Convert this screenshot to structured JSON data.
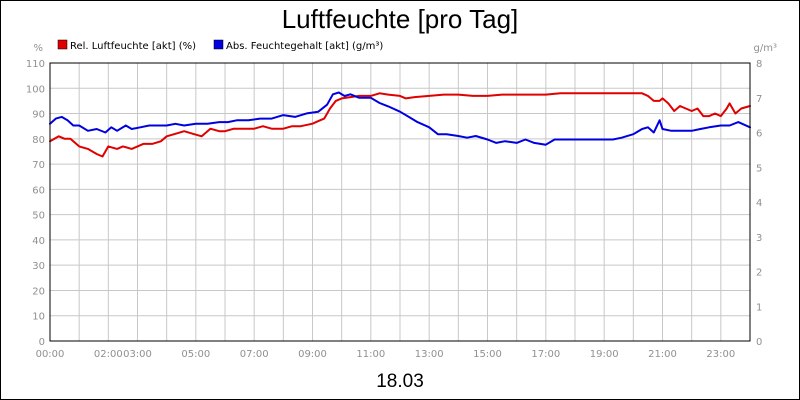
{
  "chart_data": {
    "type": "line",
    "title": "Luftfeuchte [pro Tag]",
    "date_label": "18.03",
    "y_left_unit": "%",
    "y_right_unit": "g/m³",
    "ylim_left": [
      0,
      110
    ],
    "ylim_right": [
      0,
      8
    ],
    "xlim": [
      0,
      24
    ],
    "grid": true,
    "legend_position": "top-left",
    "y_left_ticks": [
      "0",
      "10",
      "20",
      "30",
      "40",
      "50",
      "60",
      "70",
      "80",
      "90",
      "100",
      "110"
    ],
    "y_right_ticks": [
      "0",
      "1",
      "2",
      "3",
      "4",
      "5",
      "6",
      "7",
      "8"
    ],
    "x_ticks": [
      {
        "x": 0,
        "label": "00:00"
      },
      {
        "x": 2,
        "label": "02:00"
      },
      {
        "x": 3,
        "label": "03:00"
      },
      {
        "x": 5,
        "label": "05:00"
      },
      {
        "x": 7,
        "label": "07:00"
      },
      {
        "x": 9,
        "label": "09:00"
      },
      {
        "x": 11,
        "label": "11:00"
      },
      {
        "x": 13,
        "label": "13:00"
      },
      {
        "x": 15,
        "label": "15:00"
      },
      {
        "x": 17,
        "label": "17:00"
      },
      {
        "x": 19,
        "label": "19:00"
      },
      {
        "x": 21,
        "label": "21:00"
      },
      {
        "x": 23,
        "label": "23:00"
      }
    ],
    "series": [
      {
        "name": "Rel. Luftfeuchte [akt] (%)",
        "color": "#e00000",
        "axis": "left",
        "x": [
          0,
          0.3,
          0.5,
          0.7,
          1.0,
          1.3,
          1.6,
          1.8,
          2.0,
          2.3,
          2.5,
          2.8,
          3.0,
          3.2,
          3.5,
          3.8,
          4.0,
          4.3,
          4.6,
          4.9,
          5.2,
          5.5,
          5.8,
          6.0,
          6.3,
          6.6,
          7.0,
          7.3,
          7.6,
          8.0,
          8.3,
          8.6,
          9.0,
          9.2,
          9.4,
          9.6,
          9.8,
          10.0,
          10.3,
          10.6,
          11.0,
          11.3,
          11.6,
          12.0,
          12.2,
          12.5,
          13.0,
          13.5,
          14.0,
          14.5,
          15.0,
          15.5,
          16.0,
          16.5,
          17.0,
          17.5,
          18.0,
          18.5,
          19.0,
          19.5,
          20.0,
          20.3,
          20.5,
          20.7,
          20.9,
          21.0,
          21.2,
          21.4,
          21.6,
          21.8,
          22.0,
          22.2,
          22.4,
          22.6,
          22.8,
          23.0,
          23.2,
          23.3,
          23.5,
          23.7,
          24.0
        ],
        "y": [
          79,
          81,
          80,
          80,
          77,
          76,
          74,
          73,
          77,
          76,
          77,
          76,
          77,
          78,
          78,
          79,
          81,
          82,
          83,
          82,
          81,
          84,
          83,
          83,
          84,
          84,
          84,
          85,
          84,
          84,
          85,
          85,
          86,
          87,
          88,
          92,
          95,
          96,
          96.5,
          97,
          97,
          98,
          97.5,
          97,
          96,
          96.5,
          97,
          97.5,
          97.5,
          97,
          97,
          97.5,
          97.5,
          97.5,
          97.5,
          98,
          98,
          98,
          98,
          98,
          98,
          98,
          97,
          95,
          95,
          96,
          94,
          91,
          93,
          92,
          91,
          92,
          89,
          89,
          90,
          89,
          92,
          94,
          90,
          92,
          93
        ]
      },
      {
        "name": "Abs. Feuchtegehalt [akt] (g/m³)",
        "color": "#0000e0",
        "axis": "right",
        "x": [
          0,
          0.2,
          0.4,
          0.6,
          0.8,
          1.0,
          1.3,
          1.6,
          1.9,
          2.1,
          2.3,
          2.6,
          2.8,
          3.1,
          3.4,
          3.7,
          4.0,
          4.3,
          4.6,
          5.0,
          5.4,
          5.8,
          6.1,
          6.4,
          6.8,
          7.2,
          7.6,
          8.0,
          8.4,
          8.8,
          9.2,
          9.5,
          9.7,
          9.9,
          10.1,
          10.3,
          10.6,
          11.0,
          11.3,
          11.6,
          12.0,
          12.3,
          12.6,
          13.0,
          13.3,
          13.6,
          14.0,
          14.3,
          14.6,
          15.0,
          15.3,
          15.6,
          16.0,
          16.3,
          16.6,
          17.0,
          17.3,
          17.6,
          18.0,
          18.3,
          18.6,
          19.0,
          19.3,
          19.6,
          20.0,
          20.3,
          20.5,
          20.7,
          20.9,
          21.0,
          21.3,
          21.6,
          22.0,
          22.3,
          22.6,
          23.0,
          23.3,
          23.6,
          24.0
        ],
        "y": [
          6.25,
          6.4,
          6.45,
          6.35,
          6.2,
          6.2,
          6.05,
          6.1,
          6.0,
          6.15,
          6.05,
          6.2,
          6.1,
          6.15,
          6.2,
          6.2,
          6.2,
          6.25,
          6.2,
          6.25,
          6.25,
          6.3,
          6.3,
          6.35,
          6.35,
          6.4,
          6.4,
          6.5,
          6.45,
          6.55,
          6.6,
          6.8,
          7.1,
          7.15,
          7.05,
          7.1,
          7.0,
          7.0,
          6.85,
          6.75,
          6.6,
          6.45,
          6.3,
          6.15,
          5.95,
          5.95,
          5.9,
          5.85,
          5.9,
          5.8,
          5.7,
          5.75,
          5.7,
          5.8,
          5.7,
          5.65,
          5.8,
          5.8,
          5.8,
          5.8,
          5.8,
          5.8,
          5.8,
          5.85,
          5.95,
          6.1,
          6.15,
          6.0,
          6.35,
          6.1,
          6.05,
          6.05,
          6.05,
          6.1,
          6.15,
          6.2,
          6.2,
          6.3,
          6.15
        ]
      }
    ]
  }
}
